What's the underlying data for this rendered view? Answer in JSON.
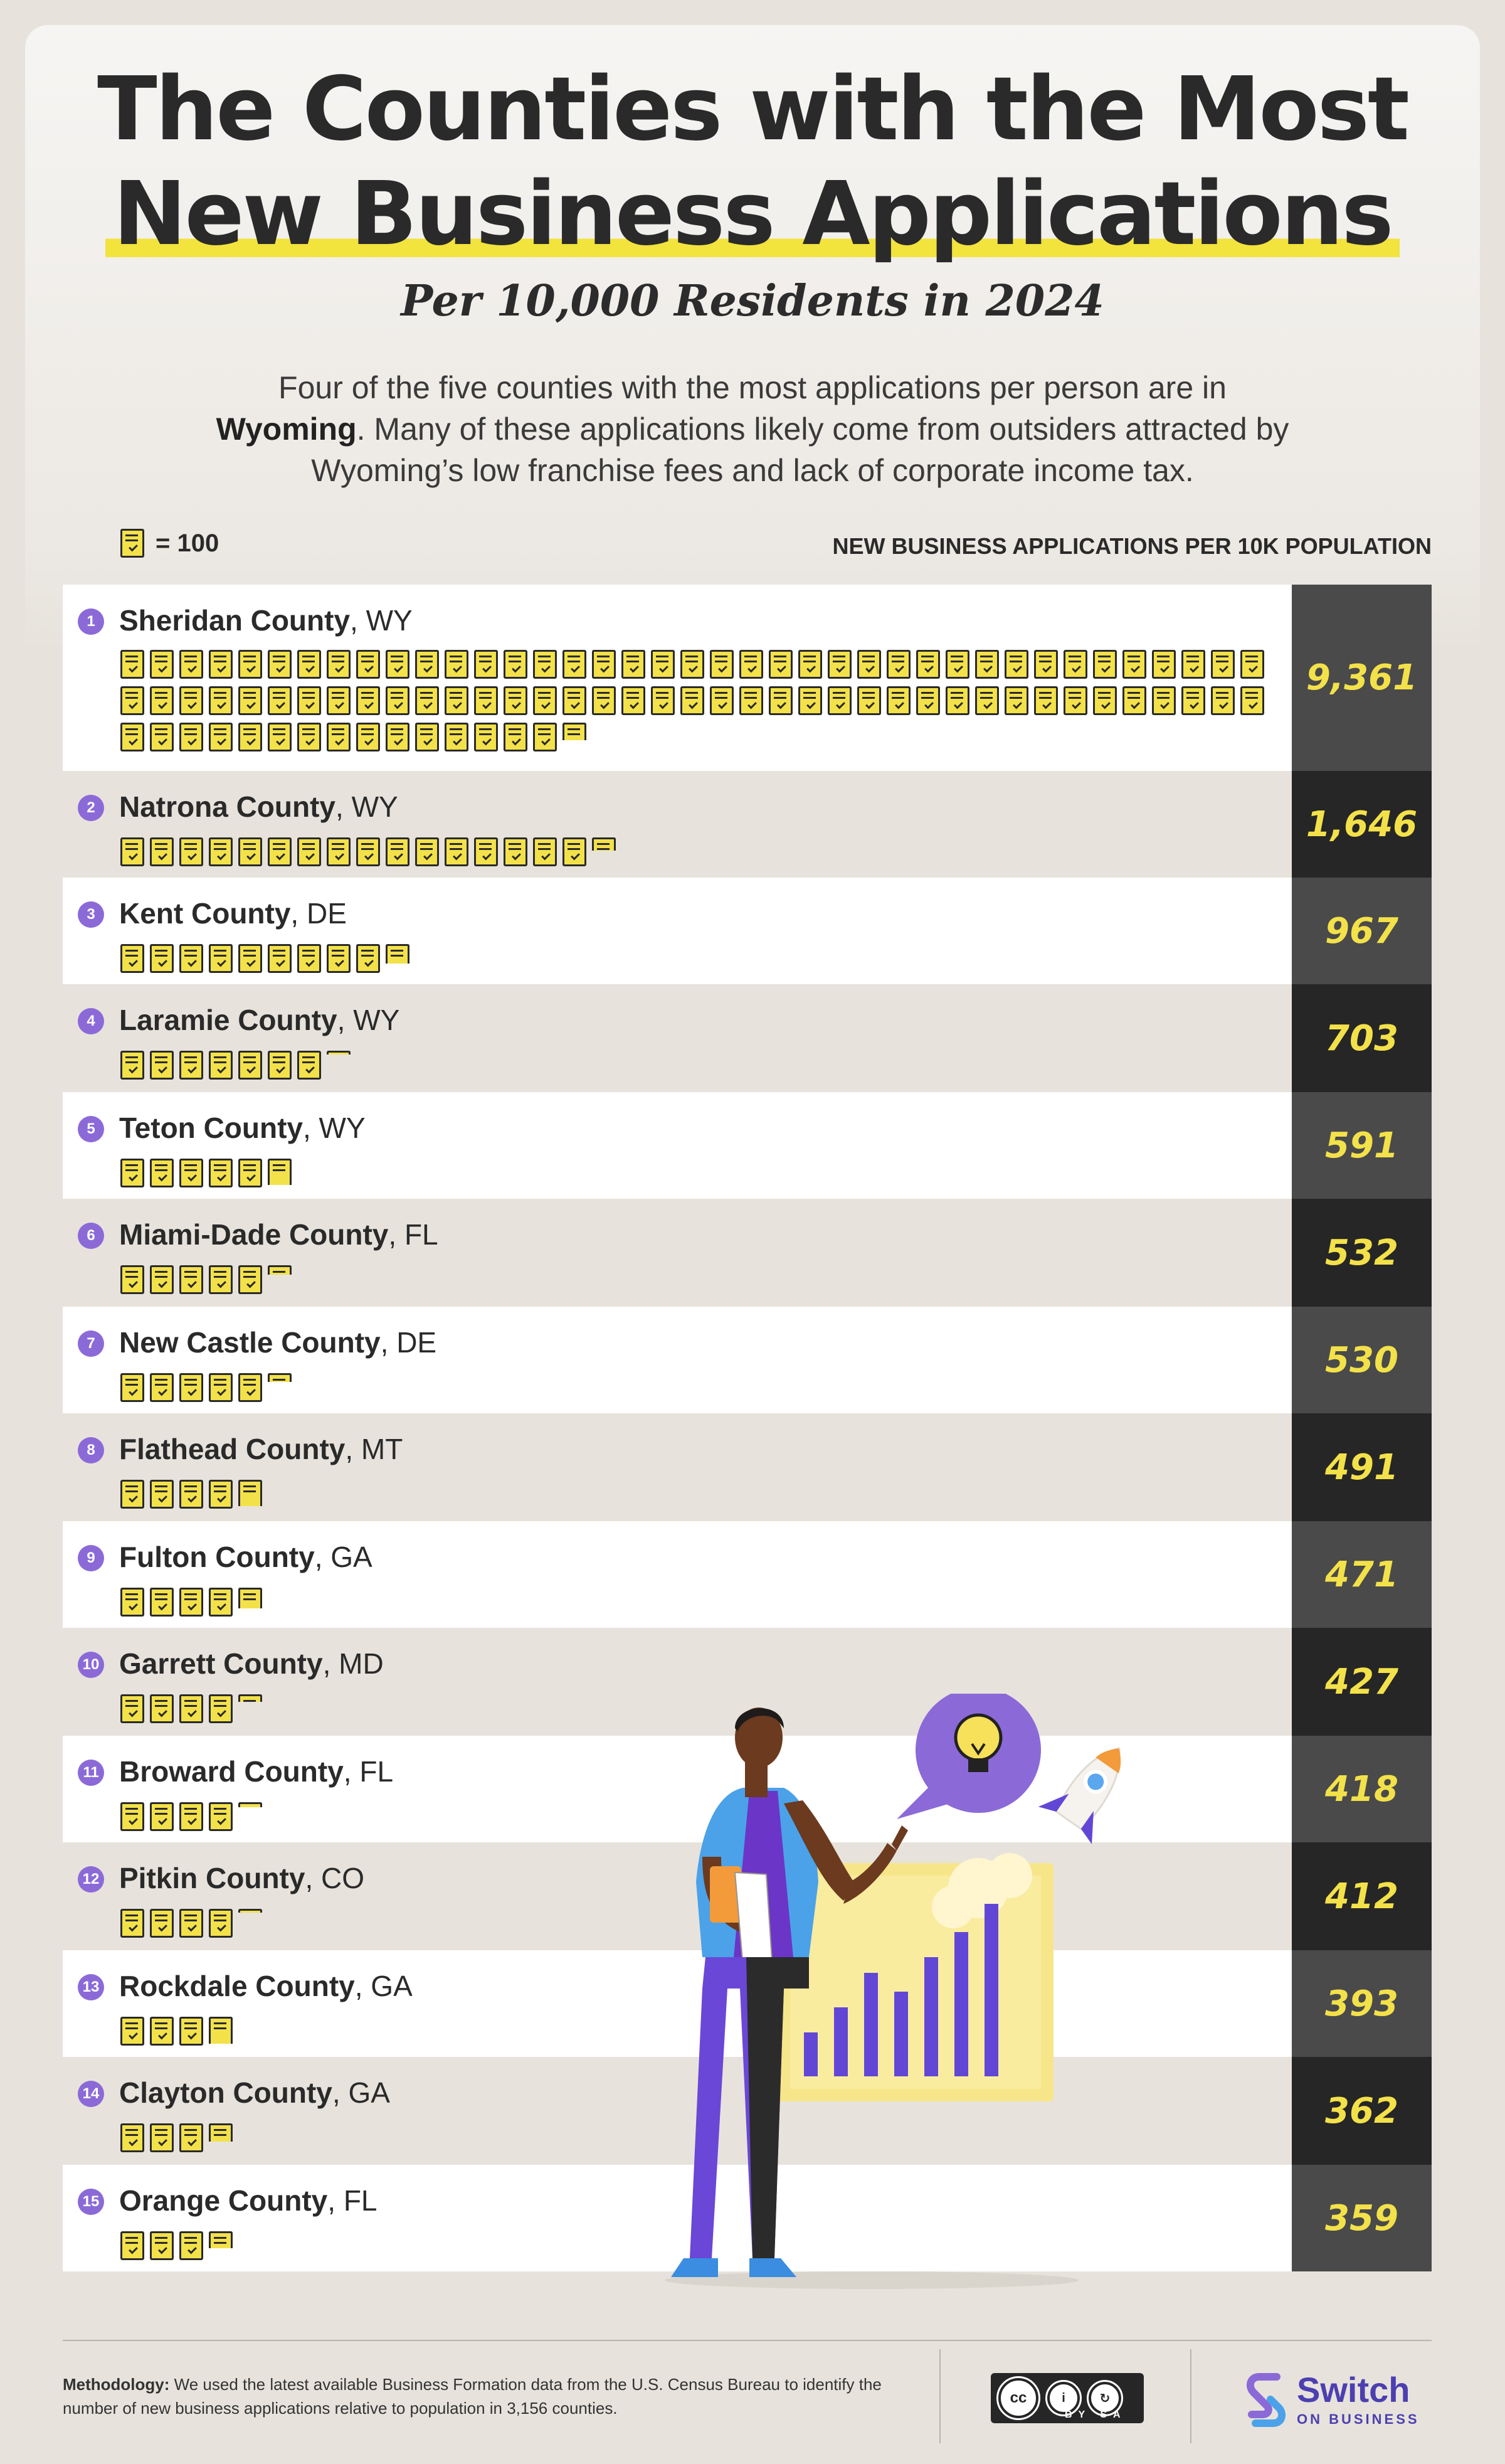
{
  "header": {
    "title_line1": "The Counties with the Most",
    "title_line2": "New Business Applications",
    "subtitle": "Per 10,000 Residents in 2024",
    "intro_part1": "Four of the five counties with the most applications per person are in ",
    "intro_bold": "Wyoming",
    "intro_part2": ". Many of these applications likely come from outsiders attracted by Wyoming’s low franchise fees and lack of corporate income tax."
  },
  "legend": {
    "label": "= 100",
    "icon": "document-icon",
    "unit_per_icon": 100
  },
  "colors": {
    "accent_yellow": "#f3e14a",
    "rank_purple": "#8b6ad8",
    "value_col_light": "#4a4a4a",
    "value_col_dark": "#262626",
    "brand": "#4c3fb0"
  },
  "chart_data": {
    "type": "bar",
    "ylabel": "NEW BUSINESS APPLICATIONS PER 10K POPULATION",
    "categories": [
      "Sheridan County, WY",
      "Natrona County, WY",
      "Kent County, DE",
      "Laramie County, WY",
      "Teton County, WY",
      "Miami-Dade County, FL",
      "New Castle County, DE",
      "Flathead County, MT",
      "Fulton County, GA",
      "Garrett County, MD",
      "Broward County, FL",
      "Pitkin County, CO",
      "Rockdale County, GA",
      "Clayton County, GA",
      "Orange County, FL"
    ],
    "rows": [
      {
        "rank": "1",
        "county": "Sheridan County",
        "state": "WY",
        "value": 9361,
        "label": "9,361"
      },
      {
        "rank": "2",
        "county": "Natrona County",
        "state": "WY",
        "value": 1646,
        "label": "1,646"
      },
      {
        "rank": "3",
        "county": "Kent County",
        "state": "DE",
        "value": 967,
        "label": "967"
      },
      {
        "rank": "4",
        "county": "Laramie County",
        "state": "WY",
        "value": 703,
        "label": "703"
      },
      {
        "rank": "5",
        "county": "Teton County",
        "state": "WY",
        "value": 591,
        "label": "591"
      },
      {
        "rank": "6",
        "county": "Miami-Dade County",
        "state": "FL",
        "value": 532,
        "label": "532"
      },
      {
        "rank": "7",
        "county": "New Castle County",
        "state": "DE",
        "value": 530,
        "label": "530"
      },
      {
        "rank": "8",
        "county": "Flathead County",
        "state": "MT",
        "value": 491,
        "label": "491"
      },
      {
        "rank": "9",
        "county": "Fulton County",
        "state": "GA",
        "value": 471,
        "label": "471"
      },
      {
        "rank": "10",
        "county": "Garrett County",
        "state": "MD",
        "value": 427,
        "label": "427"
      },
      {
        "rank": "11",
        "county": "Broward County",
        "state": "FL",
        "value": 418,
        "label": "418"
      },
      {
        "rank": "12",
        "county": "Pitkin County",
        "state": "CO",
        "value": 412,
        "label": "412"
      },
      {
        "rank": "13",
        "county": "Rockdale County",
        "state": "GA",
        "value": 393,
        "label": "393"
      },
      {
        "rank": "14",
        "county": "Clayton County",
        "state": "GA",
        "value": 362,
        "label": "362"
      },
      {
        "rank": "15",
        "county": "Orange County",
        "state": "FL",
        "value": 359,
        "label": "359"
      }
    ]
  },
  "footer": {
    "methodology_label": "Methodology:",
    "methodology_text": " We used the latest available Business Formation data from the U.S. Census Bureau to identify the number of new business applications relative to population in 3,156 counties.",
    "license_cc": "cc",
    "license_by_sa": "BY SA",
    "brand_name": "Switch",
    "brand_sub": "ON BUSINESS"
  }
}
